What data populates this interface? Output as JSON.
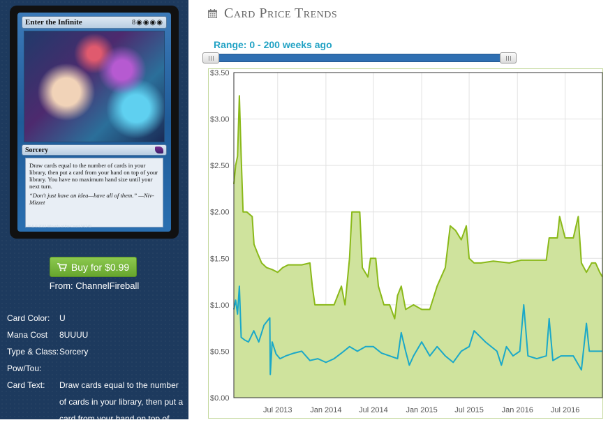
{
  "card": {
    "name": "Enter the Infinite",
    "mana_display": "8◉◉◉◉",
    "type_line": "Sorcery",
    "rules_text": "Draw cards equal to the number of cards in your library, then put a card from your hand on top of your library. You have no maximum hand size until your next turn.",
    "flavor_text": "“Don't just have an idea—have all of them.” —Niv-Mizzet",
    "artist": "Terese Nielsen",
    "copyright": "™ & © 2013 Wizards of the Coast 34/249"
  },
  "buy": {
    "label": "Buy for $0.99",
    "from": "From: ChannelFireball"
  },
  "info": {
    "color_label": "Card Color:",
    "color_value": "U",
    "cost_label": "Mana Cost",
    "cost_value": "8UUUU",
    "type_label": "Type & Class:",
    "type_value": "Sorcery",
    "powtou_label": "Pow/Tou:",
    "powtou_value": "",
    "text_label": "Card Text:",
    "text_value": "Draw cards equal to the number of cards in your library, then put a card from your hand on top of"
  },
  "page": {
    "title": "Card Price Trends",
    "range_label": "Range: 0 - 200 weeks ago"
  },
  "colors": {
    "paper_line": "#8ab919",
    "paper_fill": "#cfe39d",
    "online_line": "#1aa8c8",
    "slider": "#2f6fb2",
    "buy": "#78b83c"
  },
  "chart_data": {
    "type": "line",
    "title": "",
    "xlabel": "",
    "ylabel": "",
    "x_ticks": [
      "Jul 2013",
      "Jan 2014",
      "Jul 2014",
      "Jan 2015",
      "Jul 2015",
      "Jan 2016",
      "Jul 2016"
    ],
    "x_tick_dates": [
      "2013-07-01",
      "2014-01-01",
      "2014-07-01",
      "2015-01-01",
      "2015-07-01",
      "2016-01-01",
      "2016-07-01"
    ],
    "y_ticks": [
      "$0.00",
      "$0.50",
      "$1.00",
      "$1.50",
      "$2.00",
      "$2.50",
      "$3.00",
      "$3.50"
    ],
    "ylim": [
      0,
      3.5
    ],
    "xlim": [
      "2013-01-15",
      "2016-11-20"
    ],
    "grid": true,
    "series": [
      {
        "fill": true,
        "points": [
          [
            "2013-01-15",
            2.3
          ],
          [
            "2013-01-22",
            2.5
          ],
          [
            "2013-01-29",
            2.6
          ],
          [
            "2013-02-05",
            3.25
          ],
          [
            "2013-02-12",
            2.6
          ],
          [
            "2013-02-19",
            2.0
          ],
          [
            "2013-03-05",
            2.0
          ],
          [
            "2013-03-26",
            1.95
          ],
          [
            "2013-04-02",
            1.65
          ],
          [
            "2013-04-16",
            1.55
          ],
          [
            "2013-05-01",
            1.45
          ],
          [
            "2013-05-20",
            1.4
          ],
          [
            "2013-06-10",
            1.38
          ],
          [
            "2013-07-01",
            1.35
          ],
          [
            "2013-07-20",
            1.4
          ],
          [
            "2013-08-10",
            1.43
          ],
          [
            "2013-09-01",
            1.43
          ],
          [
            "2013-10-01",
            1.43
          ],
          [
            "2013-11-01",
            1.45
          ],
          [
            "2013-11-10",
            1.2
          ],
          [
            "2013-11-20",
            1.0
          ],
          [
            "2014-01-01",
            1.0
          ],
          [
            "2014-02-01",
            1.0
          ],
          [
            "2014-03-01",
            1.2
          ],
          [
            "2014-03-15",
            1.0
          ],
          [
            "2014-04-01",
            1.5
          ],
          [
            "2014-04-10",
            2.0
          ],
          [
            "2014-05-10",
            2.0
          ],
          [
            "2014-05-20",
            1.4
          ],
          [
            "2014-06-10",
            1.3
          ],
          [
            "2014-06-20",
            1.5
          ],
          [
            "2014-07-10",
            1.5
          ],
          [
            "2014-07-20",
            1.2
          ],
          [
            "2014-08-10",
            1.0
          ],
          [
            "2014-09-01",
            1.0
          ],
          [
            "2014-09-20",
            0.85
          ],
          [
            "2014-10-01",
            1.1
          ],
          [
            "2014-10-15",
            1.2
          ],
          [
            "2014-11-01",
            0.95
          ],
          [
            "2014-12-01",
            1.0
          ],
          [
            "2015-01-01",
            0.95
          ],
          [
            "2015-02-01",
            0.95
          ],
          [
            "2015-03-01",
            1.2
          ],
          [
            "2015-04-01",
            1.4
          ],
          [
            "2015-04-20",
            1.85
          ],
          [
            "2015-05-10",
            1.8
          ],
          [
            "2015-06-01",
            1.7
          ],
          [
            "2015-06-20",
            1.85
          ],
          [
            "2015-07-01",
            1.5
          ],
          [
            "2015-07-20",
            1.45
          ],
          [
            "2015-08-15",
            1.45
          ],
          [
            "2015-10-01",
            1.47
          ],
          [
            "2015-12-01",
            1.45
          ],
          [
            "2016-01-15",
            1.48
          ],
          [
            "2016-03-01",
            1.48
          ],
          [
            "2016-04-20",
            1.48
          ],
          [
            "2016-05-01",
            1.72
          ],
          [
            "2016-06-01",
            1.72
          ],
          [
            "2016-06-10",
            1.95
          ],
          [
            "2016-07-01",
            1.72
          ],
          [
            "2016-08-01",
            1.72
          ],
          [
            "2016-08-20",
            1.95
          ],
          [
            "2016-09-01",
            1.45
          ],
          [
            "2016-09-20",
            1.35
          ],
          [
            "2016-10-10",
            1.45
          ],
          [
            "2016-10-25",
            1.45
          ],
          [
            "2016-11-10",
            1.35
          ],
          [
            "2016-11-20",
            1.3
          ]
        ]
      },
      {
        "fill": false,
        "points": [
          [
            "2013-01-15",
            0.95
          ],
          [
            "2013-01-22",
            1.05
          ],
          [
            "2013-01-29",
            0.9
          ],
          [
            "2013-02-05",
            1.2
          ],
          [
            "2013-02-12",
            0.65
          ],
          [
            "2013-02-26",
            0.62
          ],
          [
            "2013-03-12",
            0.6
          ],
          [
            "2013-04-01",
            0.72
          ],
          [
            "2013-04-20",
            0.6
          ],
          [
            "2013-05-10",
            0.78
          ],
          [
            "2013-06-01",
            0.86
          ],
          [
            "2013-06-03",
            0.25
          ],
          [
            "2013-06-10",
            0.6
          ],
          [
            "2013-06-25",
            0.47
          ],
          [
            "2013-07-10",
            0.42
          ],
          [
            "2013-08-01",
            0.45
          ],
          [
            "2013-09-01",
            0.48
          ],
          [
            "2013-10-01",
            0.5
          ],
          [
            "2013-11-01",
            0.4
          ],
          [
            "2013-12-01",
            0.42
          ],
          [
            "2014-01-01",
            0.38
          ],
          [
            "2014-02-01",
            0.42
          ],
          [
            "2014-03-01",
            0.48
          ],
          [
            "2014-04-01",
            0.55
          ],
          [
            "2014-05-01",
            0.5
          ],
          [
            "2014-06-01",
            0.55
          ],
          [
            "2014-07-01",
            0.55
          ],
          [
            "2014-08-01",
            0.48
          ],
          [
            "2014-09-01",
            0.45
          ],
          [
            "2014-10-01",
            0.42
          ],
          [
            "2014-10-15",
            0.7
          ],
          [
            "2014-11-01",
            0.5
          ],
          [
            "2014-11-15",
            0.35
          ],
          [
            "2014-12-01",
            0.45
          ],
          [
            "2015-01-01",
            0.6
          ],
          [
            "2015-02-01",
            0.45
          ],
          [
            "2015-03-01",
            0.55
          ],
          [
            "2015-04-01",
            0.45
          ],
          [
            "2015-05-01",
            0.38
          ],
          [
            "2015-06-01",
            0.5
          ],
          [
            "2015-07-01",
            0.55
          ],
          [
            "2015-07-20",
            0.72
          ],
          [
            "2015-09-01",
            0.6
          ],
          [
            "2015-10-15",
            0.5
          ],
          [
            "2015-11-01",
            0.35
          ],
          [
            "2015-11-20",
            0.55
          ],
          [
            "2015-12-15",
            0.45
          ],
          [
            "2016-01-10",
            0.5
          ],
          [
            "2016-01-25",
            1.0
          ],
          [
            "2016-02-10",
            0.45
          ],
          [
            "2016-03-15",
            0.42
          ],
          [
            "2016-04-20",
            0.45
          ],
          [
            "2016-05-01",
            0.85
          ],
          [
            "2016-05-15",
            0.4
          ],
          [
            "2016-06-15",
            0.45
          ],
          [
            "2016-07-01",
            0.45
          ],
          [
            "2016-08-01",
            0.45
          ],
          [
            "2016-09-01",
            0.3
          ],
          [
            "2016-09-20",
            0.8
          ],
          [
            "2016-10-01",
            0.5
          ],
          [
            "2016-11-20",
            0.5
          ]
        ]
      }
    ]
  }
}
